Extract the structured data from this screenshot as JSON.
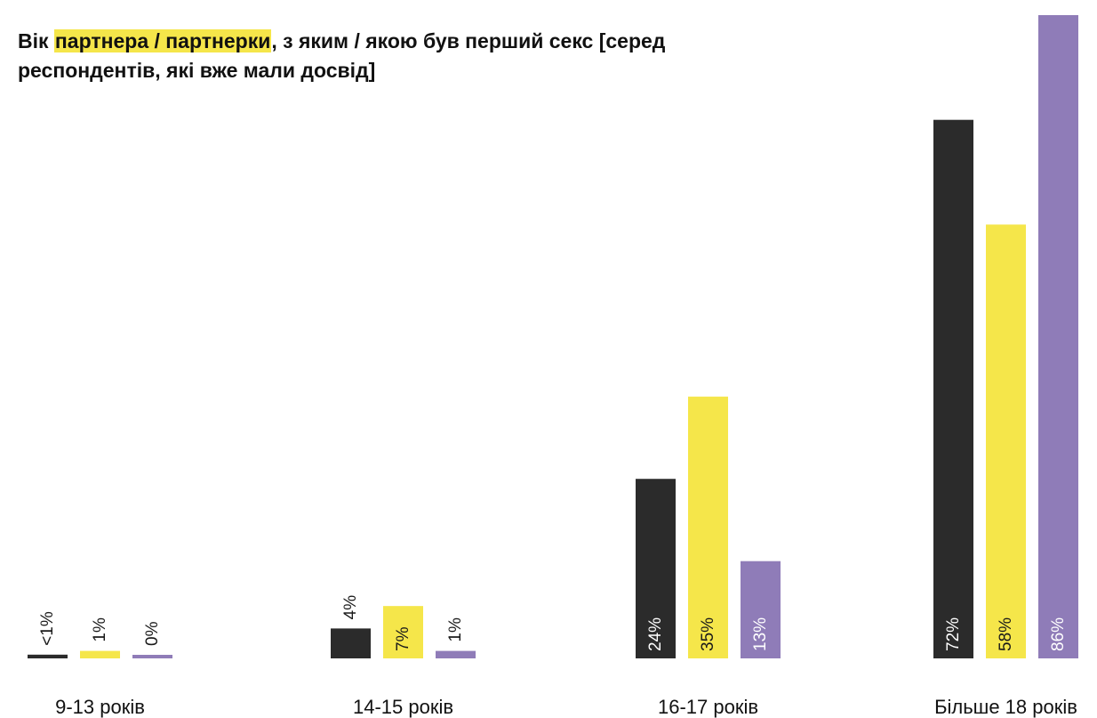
{
  "title": {
    "prefix": "Вік ",
    "highlight": "партнера / партнерки",
    "suffix": ", з яким / якою був перший секс [серед респондентів, які вже мали досвід]"
  },
  "colors": {
    "series_1": "#2b2b2b",
    "series_2": "#f5e64a",
    "series_3": "#8f7cb8",
    "label_on_dark": "#ffffff",
    "label_on_light": "#1a1a1a",
    "highlight": "#f5e64a"
  },
  "chart_data": {
    "type": "bar",
    "categories": [
      "9-13 років",
      "14-15 років",
      "16-17 років",
      "Більше 18 років"
    ],
    "series": [
      {
        "values": [
          0.5,
          4,
          24,
          72
        ],
        "labels": [
          "<1%",
          "4%",
          "24%",
          "72%"
        ]
      },
      {
        "values": [
          1,
          7,
          35,
          58
        ],
        "labels": [
          "1%",
          "7%",
          "35%",
          "58%"
        ]
      },
      {
        "values": [
          0.3,
          1,
          13,
          86
        ],
        "labels": [
          "0%",
          "1%",
          "13%",
          "86%"
        ]
      }
    ],
    "ylim": [
      0,
      86
    ],
    "grid": false,
    "legend": "none",
    "value_labels": "rotated vertical"
  }
}
